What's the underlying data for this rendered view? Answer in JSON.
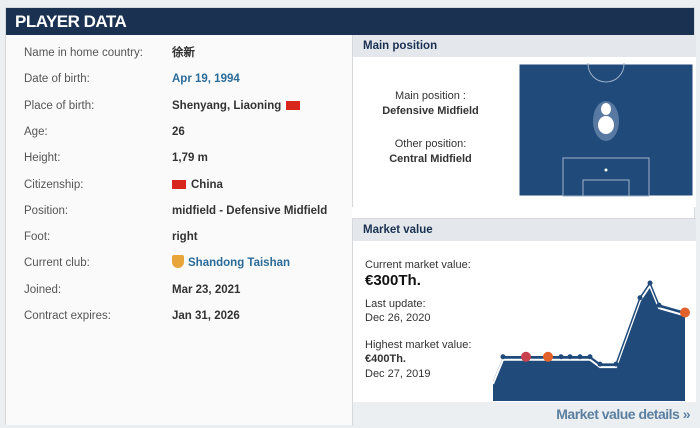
{
  "header": {
    "title": "PLAYER DATA"
  },
  "player": [
    {
      "label": "Name in home country:",
      "value": "徐新"
    },
    {
      "label": "Date of birth:",
      "value": "Apr 19, 1994",
      "link": true
    },
    {
      "label": "Place of birth:",
      "value": "Shenyang, Liaoning",
      "flag": "china-flag",
      "flag_after": true
    },
    {
      "label": "Age:",
      "value": "26"
    },
    {
      "label": "Height:",
      "value": "1,79 m"
    },
    {
      "label": "Citizenship:",
      "value": "China",
      "flag": "china-flag"
    },
    {
      "label": "Position:",
      "value": "midfield - Defensive Midfield"
    },
    {
      "label": "Foot:",
      "value": "right"
    },
    {
      "label": "Current club:",
      "value": "Shandong Taishan",
      "link": true,
      "crest": "club-crest"
    },
    {
      "label": "Joined:",
      "value": "Mar 23, 2021"
    },
    {
      "label": "Contract expires:",
      "value": "Jan 31, 2026"
    }
  ],
  "position": {
    "title": "Main position",
    "main_label": "Main position :",
    "main_value": "Defensive Midfield",
    "other_label": "Other position:",
    "other_value": "Central Midfield"
  },
  "market": {
    "title": "Market value",
    "current_label": "Current market value:",
    "current_value": "€300Th.",
    "update_label": "Last update:",
    "update_value": "Dec 26, 2020",
    "highest_label": "Highest market value:",
    "highest_value": "€400Th.",
    "highest_date": "Dec 27, 2019",
    "details_link": "Market value details »"
  },
  "chart_data": {
    "type": "area",
    "values": [
      150,
      150,
      150,
      150,
      150,
      150,
      150,
      150,
      125,
      125,
      350,
      400,
      325,
      300
    ],
    "color": "#1f4a7a",
    "axes": "none"
  },
  "colors": {
    "header": "#1a3151",
    "link": "#2b6b99",
    "pitch": "#1f4a7a"
  }
}
